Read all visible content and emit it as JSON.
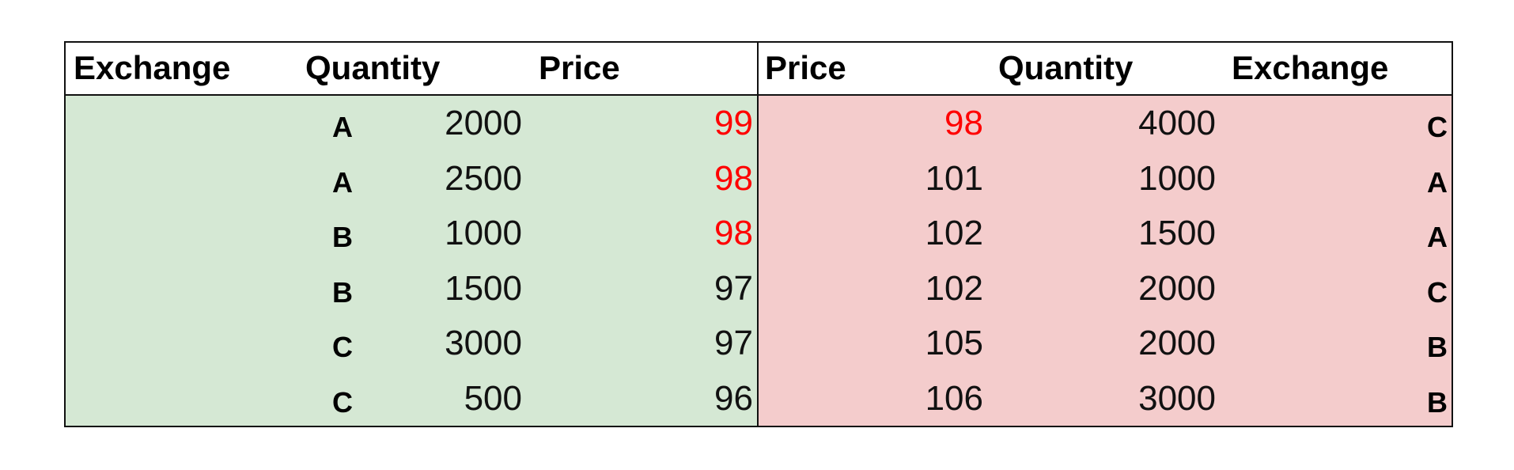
{
  "bids": {
    "headers": {
      "exchange": "Exchange",
      "quantity": "Quantity",
      "price": "Price"
    },
    "rows": [
      {
        "exchange": "A",
        "quantity": "2000",
        "price": "99",
        "highlight": true
      },
      {
        "exchange": "A",
        "quantity": "2500",
        "price": "98",
        "highlight": true
      },
      {
        "exchange": "B",
        "quantity": "1000",
        "price": "98",
        "highlight": true
      },
      {
        "exchange": "B",
        "quantity": "1500",
        "price": "97",
        "highlight": false
      },
      {
        "exchange": "C",
        "quantity": "3000",
        "price": "97",
        "highlight": false
      },
      {
        "exchange": "C",
        "quantity": "500",
        "price": "96",
        "highlight": false
      }
    ]
  },
  "asks": {
    "headers": {
      "price": "Price",
      "quantity": "Quantity",
      "exchange": "Exchange"
    },
    "rows": [
      {
        "price": "98",
        "quantity": "4000",
        "exchange": "C",
        "highlight": true
      },
      {
        "price": "101",
        "quantity": "1000",
        "exchange": "A",
        "highlight": false
      },
      {
        "price": "102",
        "quantity": "1500",
        "exchange": "A",
        "highlight": false
      },
      {
        "price": "102",
        "quantity": "2000",
        "exchange": "C",
        "highlight": false
      },
      {
        "price": "105",
        "quantity": "2000",
        "exchange": "B",
        "highlight": false
      },
      {
        "price": "106",
        "quantity": "3000",
        "exchange": "B",
        "highlight": false
      }
    ]
  },
  "colors": {
    "bid_background": "#d5e8d4",
    "ask_background": "#f4cccc",
    "highlight_text": "#ff0000",
    "border": "#111111"
  }
}
